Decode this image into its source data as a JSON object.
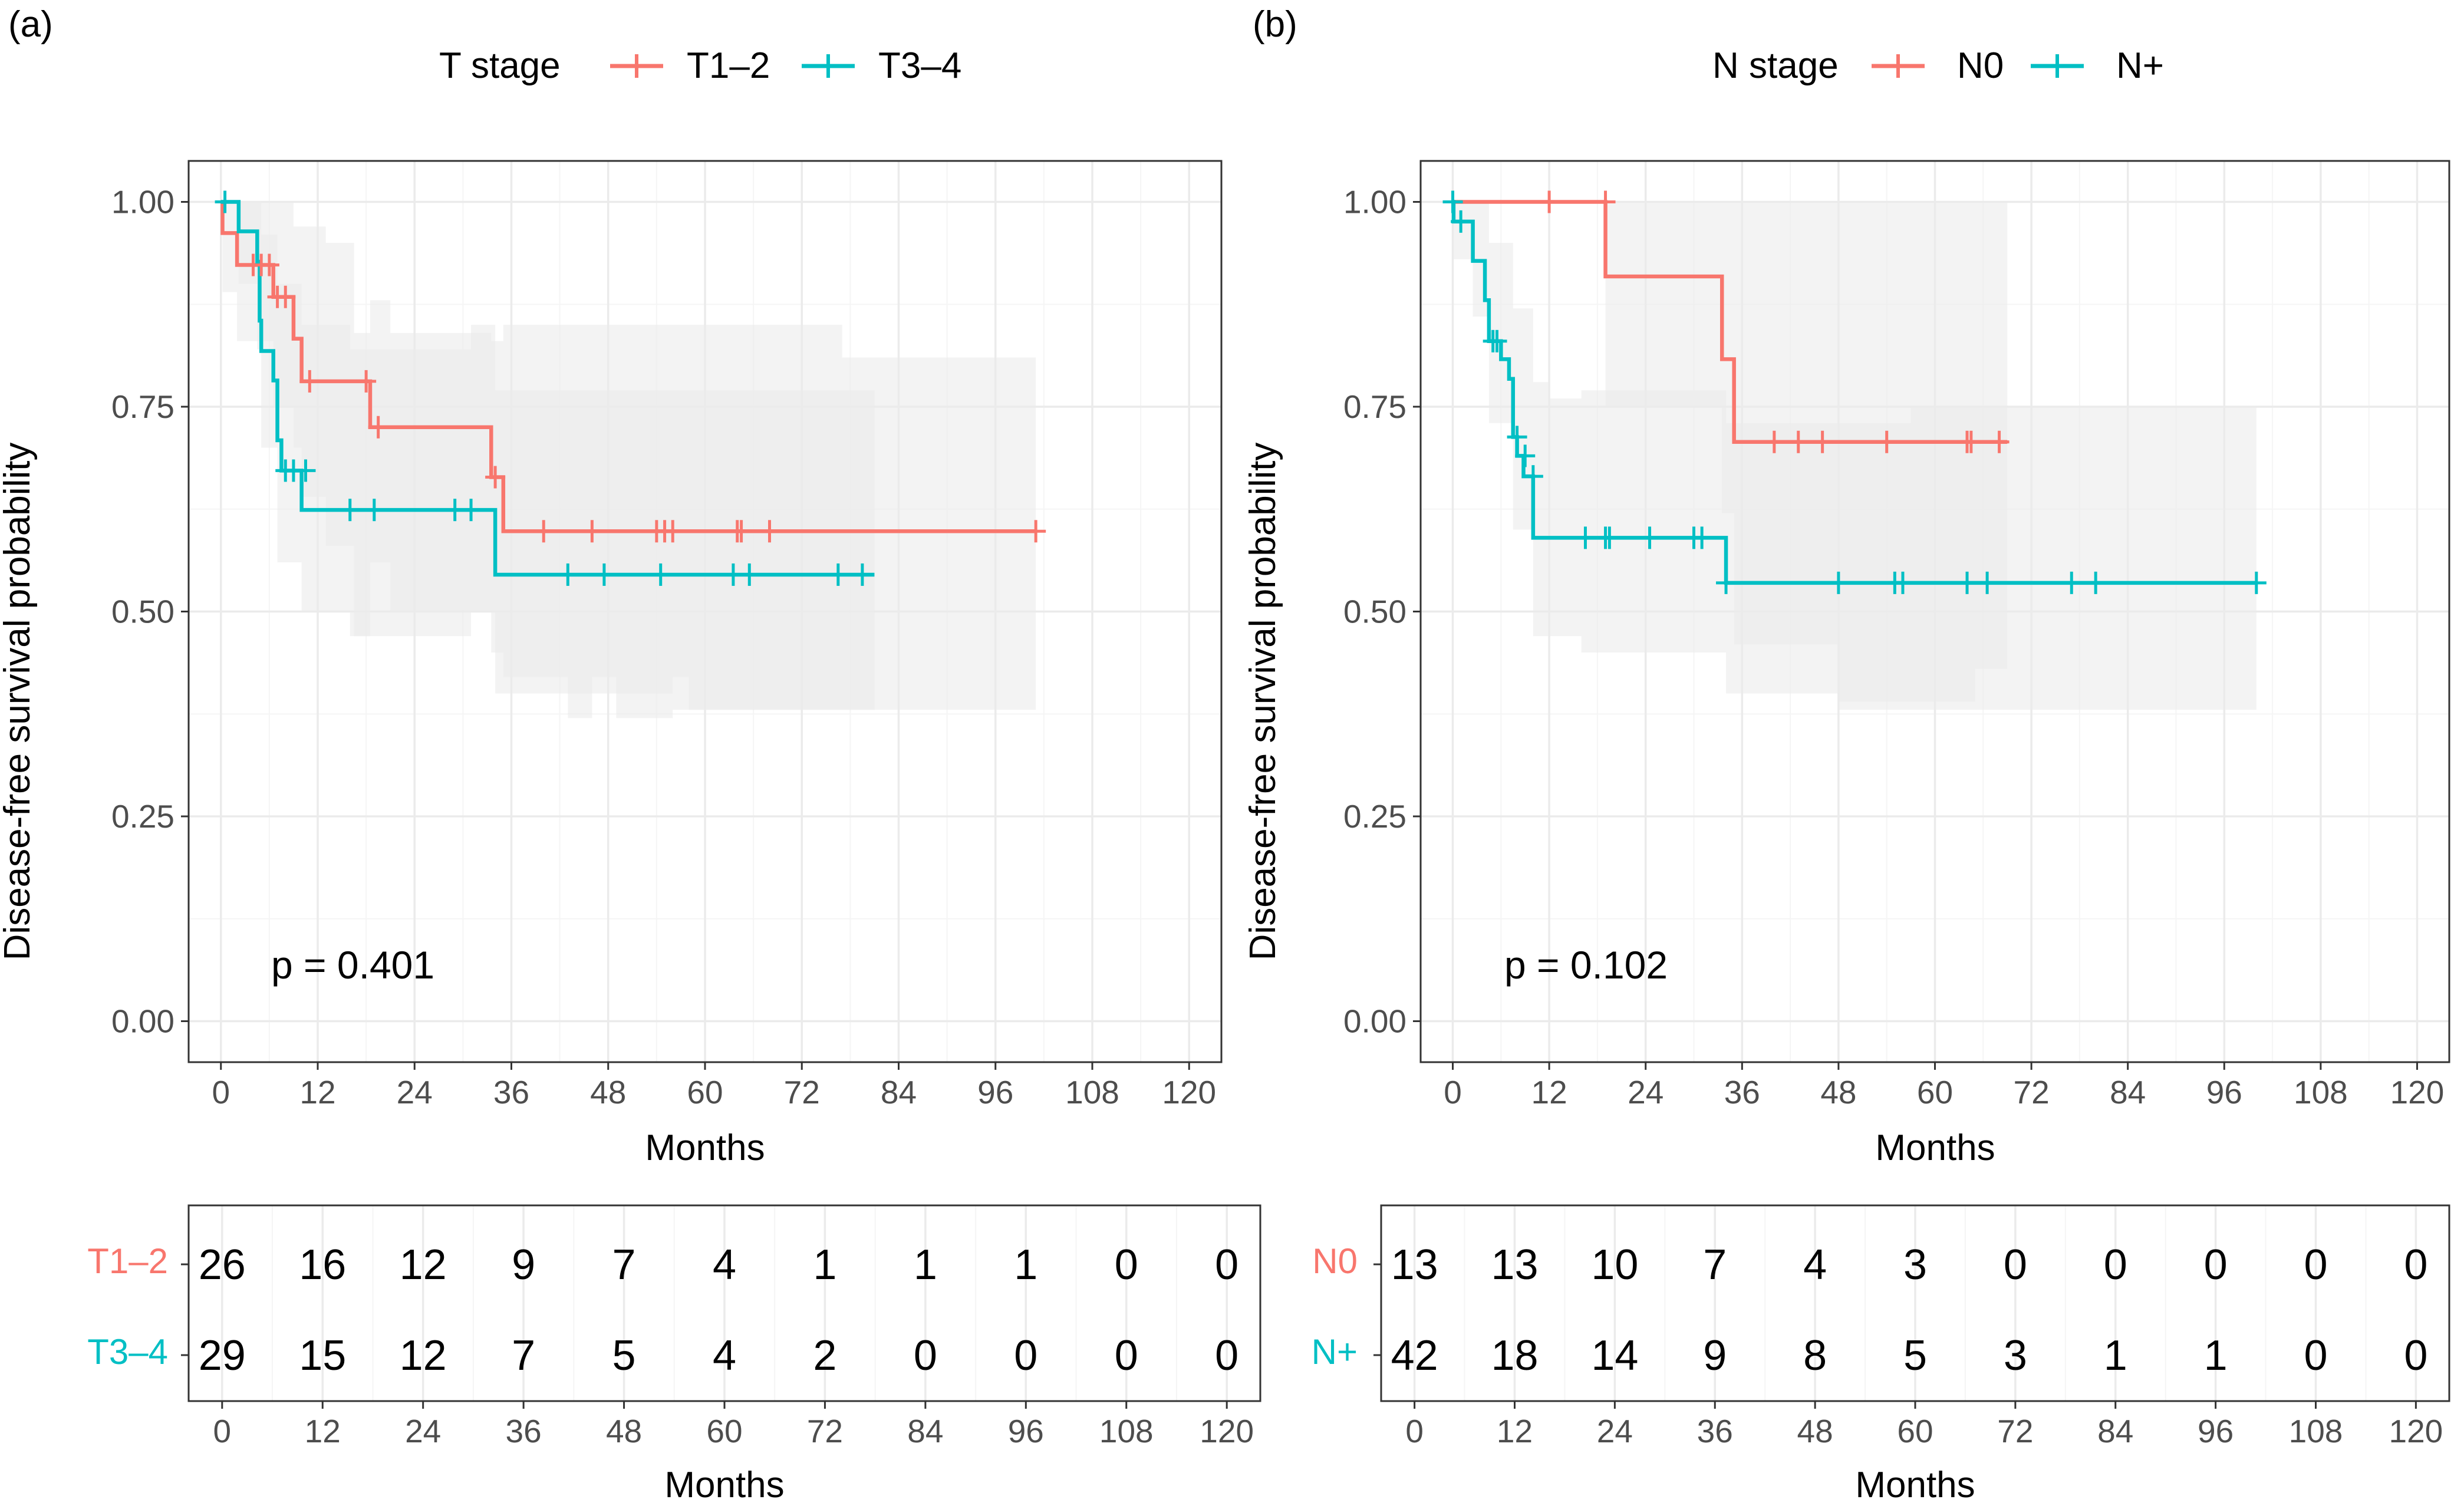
{
  "colors": {
    "group1": "#F8766D",
    "group2": "#00BFC4",
    "ci_fill": "#EBEBEB",
    "grid_major": "#EBEBEB",
    "grid_minor": "#F5F5F5",
    "axis_text": "#4D4D4D",
    "panel_border": "#333333"
  },
  "chart_data": [
    {
      "type": "line",
      "subtype": "kaplan-meier",
      "panel_label": "(a)",
      "legend": {
        "title": "T stage",
        "entries": [
          "T1–2",
          "T3–4"
        ],
        "position": "top"
      },
      "xlabel": "Months",
      "ylabel": "Disease-free survival probability",
      "xlim": [
        -4,
        124
      ],
      "ylim": [
        -0.05,
        1.05
      ],
      "xticks": [
        0,
        12,
        24,
        36,
        48,
        60,
        72,
        84,
        96,
        108,
        120
      ],
      "yticks": [
        0,
        0.25,
        0.5,
        0.75,
        1
      ],
      "ytick_labels": [
        "0.00",
        "0.25",
        "0.50",
        "0.75",
        "1.00"
      ],
      "p_value": "p = 0.401",
      "series": [
        {
          "name": "T1–2",
          "steps": [
            [
              0,
              1.0
            ],
            [
              0.2,
              0.962
            ],
            [
              2,
              0.923
            ],
            [
              6.5,
              0.884
            ],
            [
              9,
              0.833
            ],
            [
              10,
              0.781
            ],
            [
              18.5,
              0.725
            ],
            [
              33.5,
              0.664
            ],
            [
              35,
              0.598
            ],
            [
              101,
              0.598
            ]
          ],
          "censors": [
            [
              4,
              0.923
            ],
            [
              5,
              0.923
            ],
            [
              6,
              0.923
            ],
            [
              7,
              0.884
            ],
            [
              8,
              0.884
            ],
            [
              11,
              0.781
            ],
            [
              18,
              0.781
            ],
            [
              19.5,
              0.725
            ],
            [
              34,
              0.664
            ],
            [
              40,
              0.598
            ],
            [
              46,
              0.598
            ],
            [
              54,
              0.598
            ],
            [
              55,
              0.598
            ],
            [
              56,
              0.598
            ],
            [
              64,
              0.598
            ],
            [
              64.5,
              0.598
            ],
            [
              68,
              0.598
            ],
            [
              101,
              0.598
            ]
          ],
          "ci": [
            [
              0,
              1.0,
              1.0
            ],
            [
              0.2,
              0.89,
              1.0
            ],
            [
              2,
              0.83,
              1.0
            ],
            [
              6.5,
              0.75,
              1.0
            ],
            [
              9,
              0.7,
              0.97
            ],
            [
              10,
              0.64,
              0.97
            ],
            [
              13,
              0.58,
              0.95
            ],
            [
              16.5,
              0.47,
              0.84
            ],
            [
              18.5,
              0.56,
              0.88
            ],
            [
              21,
              0.5,
              0.84
            ],
            [
              24,
              0.5,
              0.84
            ],
            [
              33.5,
              0.45,
              0.83
            ],
            [
              35,
              0.42,
              0.85
            ],
            [
              43,
              0.37,
              0.85
            ],
            [
              46,
              0.42,
              0.85
            ],
            [
              49,
              0.37,
              0.85
            ],
            [
              56,
              0.42,
              0.85
            ],
            [
              58,
              0.38,
              0.85
            ],
            [
              77,
              0.38,
              0.81
            ],
            [
              101,
              0.38,
              0.81
            ]
          ],
          "at_risk": [
            26,
            16,
            12,
            9,
            7,
            4,
            1,
            1,
            1,
            0,
            0
          ]
        },
        {
          "name": "T3–4",
          "steps": [
            [
              0,
              1.0
            ],
            [
              1.5,
              1.0
            ],
            [
              2.2,
              0.964
            ],
            [
              4.5,
              0.927
            ],
            [
              4.8,
              0.855
            ],
            [
              5,
              0.818
            ],
            [
              6.5,
              0.782
            ],
            [
              7,
              0.709
            ],
            [
              7.5,
              0.672
            ],
            [
              10,
              0.624
            ],
            [
              34,
              0.545
            ],
            [
              81,
              0.545
            ]
          ],
          "censors": [
            [
              0.5,
              1.0
            ],
            [
              8,
              0.672
            ],
            [
              9,
              0.672
            ],
            [
              10.5,
              0.672
            ],
            [
              16,
              0.624
            ],
            [
              19,
              0.624
            ],
            [
              29,
              0.624
            ],
            [
              31,
              0.624
            ],
            [
              43,
              0.545
            ],
            [
              47.5,
              0.545
            ],
            [
              54.5,
              0.545
            ],
            [
              63.5,
              0.545
            ],
            [
              65.5,
              0.545
            ],
            [
              76.5,
              0.545
            ],
            [
              79.5,
              0.545
            ]
          ],
          "ci": [
            [
              0,
              1.0,
              1.0
            ],
            [
              2.2,
              0.9,
              1.0
            ],
            [
              4.5,
              0.82,
              1.0
            ],
            [
              5,
              0.7,
              0.96
            ],
            [
              7,
              0.56,
              0.9
            ],
            [
              10,
              0.5,
              0.85
            ],
            [
              16,
              0.47,
              0.82
            ],
            [
              31,
              0.5,
              0.85
            ],
            [
              34,
              0.4,
              0.77
            ],
            [
              56,
              0.38,
              0.77
            ],
            [
              81,
              0.38,
              0.77
            ]
          ],
          "at_risk": [
            29,
            15,
            12,
            7,
            5,
            4,
            2,
            0,
            0,
            0,
            0
          ]
        }
      ],
      "risk_table": {
        "xlabel": "Months",
        "xticks": [
          0,
          12,
          24,
          36,
          48,
          60,
          72,
          84,
          96,
          108,
          120
        ]
      }
    },
    {
      "type": "line",
      "subtype": "kaplan-meier",
      "panel_label": "(b)",
      "legend": {
        "title": "N stage",
        "entries": [
          "N0",
          "N+"
        ],
        "position": "top"
      },
      "xlabel": "Months",
      "ylabel": "Disease-free survival probability",
      "xlim": [
        -4,
        124
      ],
      "ylim": [
        -0.05,
        1.05
      ],
      "xticks": [
        0,
        12,
        24,
        36,
        48,
        60,
        72,
        84,
        96,
        108,
        120
      ],
      "yticks": [
        0,
        0.25,
        0.5,
        0.75,
        1
      ],
      "ytick_labels": [
        "0.00",
        "0.25",
        "0.50",
        "0.75",
        "1.00"
      ],
      "p_value": "p = 0.102",
      "series": [
        {
          "name": "N0",
          "steps": [
            [
              0,
              1.0
            ],
            [
              19,
              0.909
            ],
            [
              33.5,
              0.808
            ],
            [
              35,
              0.707
            ],
            [
              69,
              0.707
            ]
          ],
          "censors": [
            [
              12,
              1.0
            ],
            [
              19,
              1.0
            ],
            [
              40,
              0.707
            ],
            [
              43,
              0.707
            ],
            [
              46,
              0.707
            ],
            [
              54,
              0.707
            ],
            [
              64,
              0.707
            ],
            [
              64.5,
              0.707
            ],
            [
              68,
              0.707
            ]
          ],
          "ci": [
            [
              0,
              1.0,
              1.0
            ],
            [
              19,
              0.75,
              1.0
            ],
            [
              33.5,
              0.62,
              1.0
            ],
            [
              35,
              0.46,
              1.0
            ],
            [
              48,
              0.39,
              1.0
            ],
            [
              55,
              0.39,
              1.0
            ],
            [
              65,
              0.43,
              1.0
            ],
            [
              69,
              0.43,
              1.0
            ]
          ],
          "at_risk": [
            13,
            13,
            10,
            7,
            4,
            3,
            0,
            0,
            0,
            0,
            0
          ]
        },
        {
          "name": "N+",
          "steps": [
            [
              0,
              1.0
            ],
            [
              0.1,
              0.976
            ],
            [
              2.5,
              0.928
            ],
            [
              4,
              0.88
            ],
            [
              4.5,
              0.83
            ],
            [
              6,
              0.808
            ],
            [
              7,
              0.784
            ],
            [
              7.5,
              0.713
            ],
            [
              8,
              0.69
            ],
            [
              8.8,
              0.665
            ],
            [
              10,
              0.59
            ],
            [
              34,
              0.535
            ],
            [
              100,
              0.535
            ]
          ],
          "censors": [
            [
              0,
              1.0
            ],
            [
              1,
              0.976
            ],
            [
              5,
              0.83
            ],
            [
              5.5,
              0.83
            ],
            [
              8,
              0.713
            ],
            [
              9,
              0.69
            ],
            [
              10,
              0.665
            ],
            [
              16.5,
              0.59
            ],
            [
              19,
              0.59
            ],
            [
              19.5,
              0.59
            ],
            [
              24.5,
              0.59
            ],
            [
              30,
              0.59
            ],
            [
              31,
              0.59
            ],
            [
              34,
              0.535
            ],
            [
              48,
              0.535
            ],
            [
              55,
              0.535
            ],
            [
              56,
              0.535
            ],
            [
              64,
              0.535
            ],
            [
              66.5,
              0.535
            ],
            [
              77,
              0.535
            ],
            [
              80,
              0.535
            ],
            [
              100,
              0.535
            ]
          ],
          "ci": [
            [
              0,
              1.0,
              1.0
            ],
            [
              0.1,
              0.93,
              1.0
            ],
            [
              2.5,
              0.86,
              1.0
            ],
            [
              4.5,
              0.73,
              0.95
            ],
            [
              7.5,
              0.6,
              0.87
            ],
            [
              10,
              0.47,
              0.78
            ],
            [
              12,
              0.47,
              0.76
            ],
            [
              16,
              0.45,
              0.77
            ],
            [
              34,
              0.4,
              0.73
            ],
            [
              48,
              0.38,
              0.73
            ],
            [
              57,
              0.38,
              0.75
            ],
            [
              100,
              0.38,
              0.75
            ]
          ],
          "at_risk": [
            42,
            18,
            14,
            9,
            8,
            5,
            3,
            1,
            1,
            0,
            0
          ]
        }
      ],
      "risk_table": {
        "xlabel": "Months",
        "xticks": [
          0,
          12,
          24,
          36,
          48,
          60,
          72,
          84,
          96,
          108,
          120
        ]
      }
    }
  ]
}
